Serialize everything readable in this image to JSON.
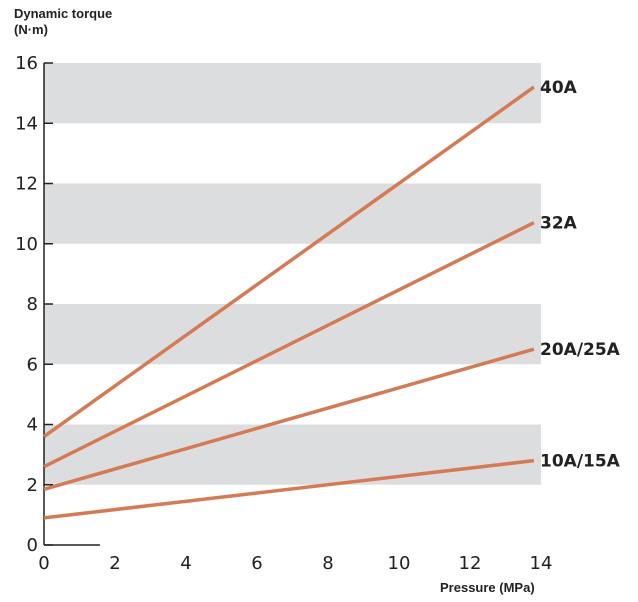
{
  "chart_data": {
    "type": "line",
    "ylabel_line1": "Dynamic torque",
    "ylabel_line2": "(N·m)",
    "xlabel": "Pressure (MPa)",
    "xlim": [
      0,
      14
    ],
    "ylim": [
      0,
      16
    ],
    "x_ticks": [
      0,
      2,
      4,
      6,
      8,
      10,
      12,
      14
    ],
    "y_ticks": [
      0,
      2,
      4,
      6,
      8,
      10,
      12,
      14,
      16
    ],
    "bands": [
      [
        2,
        4
      ],
      [
        6,
        8
      ],
      [
        10,
        12
      ],
      [
        14,
        16
      ]
    ],
    "band_color": "#dcdddf",
    "line_color": "#d47b55",
    "series": [
      {
        "name": "40A",
        "x": [
          0,
          13.8
        ],
        "y": [
          3.6,
          15.2
        ]
      },
      {
        "name": "32A",
        "x": [
          0,
          13.8
        ],
        "y": [
          2.6,
          10.7
        ]
      },
      {
        "name": "20A/25A",
        "x": [
          0,
          13.8
        ],
        "y": [
          1.85,
          6.5
        ]
      },
      {
        "name": "10A/15A",
        "x": [
          0,
          13.8
        ],
        "y": [
          0.9,
          2.8
        ]
      }
    ]
  }
}
